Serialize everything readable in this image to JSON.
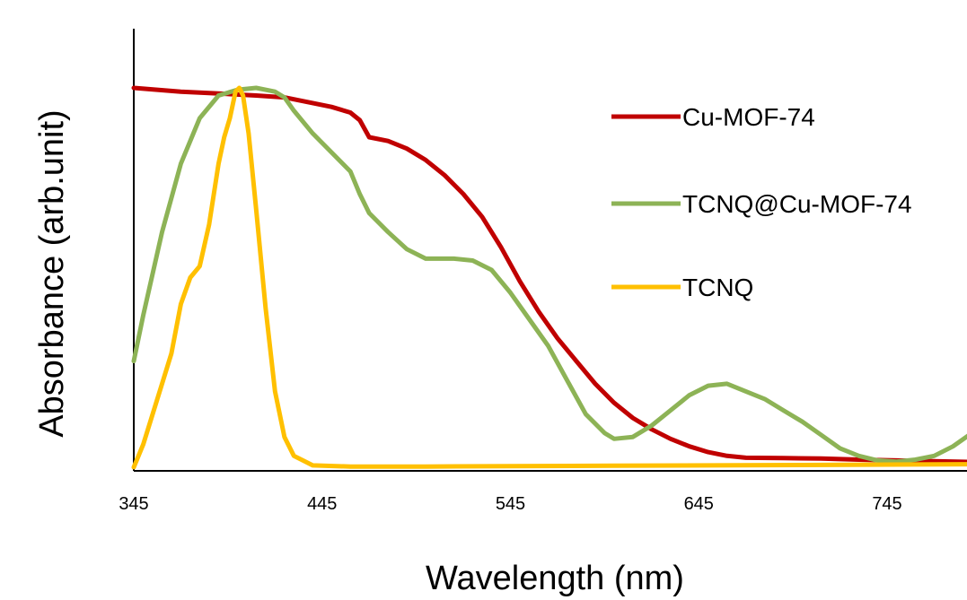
{
  "chart_data": {
    "type": "line",
    "xlabel": "Wavelength  (nm)",
    "ylabel": "Absorbance (arb.unit)",
    "xlim": [
      345,
      790
    ],
    "ylim": [
      0,
      1.0
    ],
    "x_ticks": [
      "345",
      "445",
      "545",
      "645",
      "745"
    ],
    "x_tick_values": [
      345,
      445,
      545,
      645,
      745
    ],
    "y_ticks_shown": false,
    "grid": false,
    "legend_position": "right",
    "series": [
      {
        "name": "Cu-MOF-74",
        "color": "#c00000",
        "points": [
          [
            345,
            1.0
          ],
          [
            370,
            0.99
          ],
          [
            390,
            0.985
          ],
          [
            410,
            0.98
          ],
          [
            425,
            0.975
          ],
          [
            440,
            0.96
          ],
          [
            450,
            0.95
          ],
          [
            460,
            0.935
          ],
          [
            465,
            0.915
          ],
          [
            470,
            0.87
          ],
          [
            480,
            0.86
          ],
          [
            490,
            0.84
          ],
          [
            500,
            0.81
          ],
          [
            510,
            0.77
          ],
          [
            520,
            0.72
          ],
          [
            530,
            0.66
          ],
          [
            540,
            0.58
          ],
          [
            550,
            0.49
          ],
          [
            560,
            0.41
          ],
          [
            570,
            0.34
          ],
          [
            580,
            0.28
          ],
          [
            590,
            0.22
          ],
          [
            600,
            0.17
          ],
          [
            610,
            0.13
          ],
          [
            620,
            0.1
          ],
          [
            630,
            0.075
          ],
          [
            640,
            0.055
          ],
          [
            650,
            0.04
          ],
          [
            660,
            0.03
          ],
          [
            670,
            0.025
          ],
          [
            690,
            0.024
          ],
          [
            710,
            0.023
          ],
          [
            730,
            0.02
          ],
          [
            750,
            0.018
          ],
          [
            790,
            0.014
          ]
        ]
      },
      {
        "name": "TCNQ@Cu-MOF-74",
        "color": "#8db356",
        "points": [
          [
            345,
            0.28
          ],
          [
            350,
            0.4
          ],
          [
            360,
            0.62
          ],
          [
            370,
            0.8
          ],
          [
            380,
            0.92
          ],
          [
            390,
            0.98
          ],
          [
            400,
            0.995
          ],
          [
            410,
            1.0
          ],
          [
            420,
            0.99
          ],
          [
            425,
            0.975
          ],
          [
            430,
            0.94
          ],
          [
            440,
            0.88
          ],
          [
            450,
            0.83
          ],
          [
            460,
            0.78
          ],
          [
            465,
            0.72
          ],
          [
            470,
            0.67
          ],
          [
            480,
            0.62
          ],
          [
            490,
            0.575
          ],
          [
            500,
            0.55
          ],
          [
            515,
            0.55
          ],
          [
            525,
            0.545
          ],
          [
            535,
            0.52
          ],
          [
            545,
            0.46
          ],
          [
            555,
            0.39
          ],
          [
            565,
            0.32
          ],
          [
            575,
            0.23
          ],
          [
            585,
            0.14
          ],
          [
            595,
            0.09
          ],
          [
            600,
            0.075
          ],
          [
            610,
            0.08
          ],
          [
            620,
            0.11
          ],
          [
            630,
            0.15
          ],
          [
            640,
            0.19
          ],
          [
            650,
            0.215
          ],
          [
            660,
            0.22
          ],
          [
            670,
            0.2
          ],
          [
            680,
            0.18
          ],
          [
            690,
            0.15
          ],
          [
            700,
            0.12
          ],
          [
            710,
            0.085
          ],
          [
            720,
            0.05
          ],
          [
            730,
            0.03
          ],
          [
            740,
            0.018
          ],
          [
            750,
            0.015
          ],
          [
            760,
            0.02
          ],
          [
            770,
            0.03
          ],
          [
            780,
            0.055
          ],
          [
            790,
            0.09
          ]
        ]
      },
      {
        "name": "TCNQ",
        "color": "#ffc000",
        "points": [
          [
            345,
            0.0
          ],
          [
            350,
            0.06
          ],
          [
            360,
            0.22
          ],
          [
            365,
            0.3
          ],
          [
            370,
            0.43
          ],
          [
            375,
            0.5
          ],
          [
            380,
            0.53
          ],
          [
            385,
            0.64
          ],
          [
            390,
            0.8
          ],
          [
            393,
            0.87
          ],
          [
            396,
            0.92
          ],
          [
            399,
            0.99
          ],
          [
            401,
            1.0
          ],
          [
            403,
            0.98
          ],
          [
            406,
            0.88
          ],
          [
            410,
            0.68
          ],
          [
            415,
            0.42
          ],
          [
            420,
            0.2
          ],
          [
            425,
            0.08
          ],
          [
            430,
            0.03
          ],
          [
            440,
            0.005
          ],
          [
            460,
            0.002
          ],
          [
            500,
            0.002
          ],
          [
            600,
            0.004
          ],
          [
            700,
            0.006
          ],
          [
            790,
            0.008
          ]
        ]
      }
    ]
  }
}
